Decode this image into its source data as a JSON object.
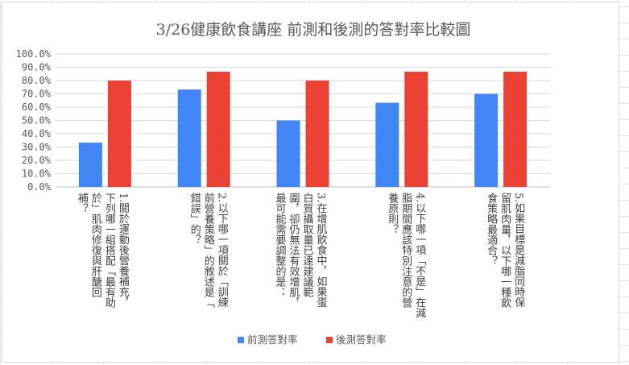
{
  "chart_data": {
    "type": "bar",
    "title": "3/26健康飲食講座  前測和後測的答對率比較圖",
    "xlabel": "",
    "ylabel": "",
    "ylim": [
      0,
      1.0
    ],
    "y_ticks": [
      "0.0%",
      "10.0%",
      "20.0%",
      "30.0%",
      "40.0%",
      "50.0%",
      "60.0%",
      "70.0%",
      "80.0%",
      "90.0%",
      "100.0%"
    ],
    "grid": true,
    "legend_position": "bottom",
    "categories": [
      "1.關於運動後營養補充，下列哪一組搭配「最有助於」肌肉修復與肝醣回補？",
      "2.以下哪一項關於「訓練前營養策略」的敘述是「錯誤」的？",
      "3.在增肌飲食中，如果蛋白質攝取量已達建議範圍，卻仍無法有效增肌，最可能需要調整的是：",
      "4.以下哪一項「不是」在減脂期間應該特別注意的營養原則？",
      "5.如果目標是減脂同時保留肌肉量，以下哪一種飲食策略最適合？"
    ],
    "category_lines": [
      [
        "1.關於運動後營養補充，",
        "下列哪一組搭配「最有助",
        "於」肌肉修復與肝醣回",
        "補？"
      ],
      [
        "2.以下哪一項關於「訓練",
        "前營養策略」的敘述是「",
        "錯誤」的？"
      ],
      [
        "3.在增肌飲食中，如果蛋",
        "白質攝取量已達建議範",
        "圍，卻仍無法有效增肌，",
        "最可能需要調整的是："
      ],
      [
        "4.以下哪一項「不是」在減",
        "脂期間應該特別注意的營",
        "養原則？"
      ],
      [
        "5.如果目標是減脂同時保",
        "留肌肉量，以下哪一種飲",
        "食策略最適合？"
      ]
    ],
    "series": [
      {
        "name": "前測答對率",
        "color": "#4285F4",
        "values": [
          0.333,
          0.733,
          0.5,
          0.633,
          0.7
        ]
      },
      {
        "name": "後測答對率",
        "color": "#EA4335",
        "values": [
          0.8,
          0.867,
          0.8,
          0.867,
          0.867
        ]
      }
    ]
  }
}
